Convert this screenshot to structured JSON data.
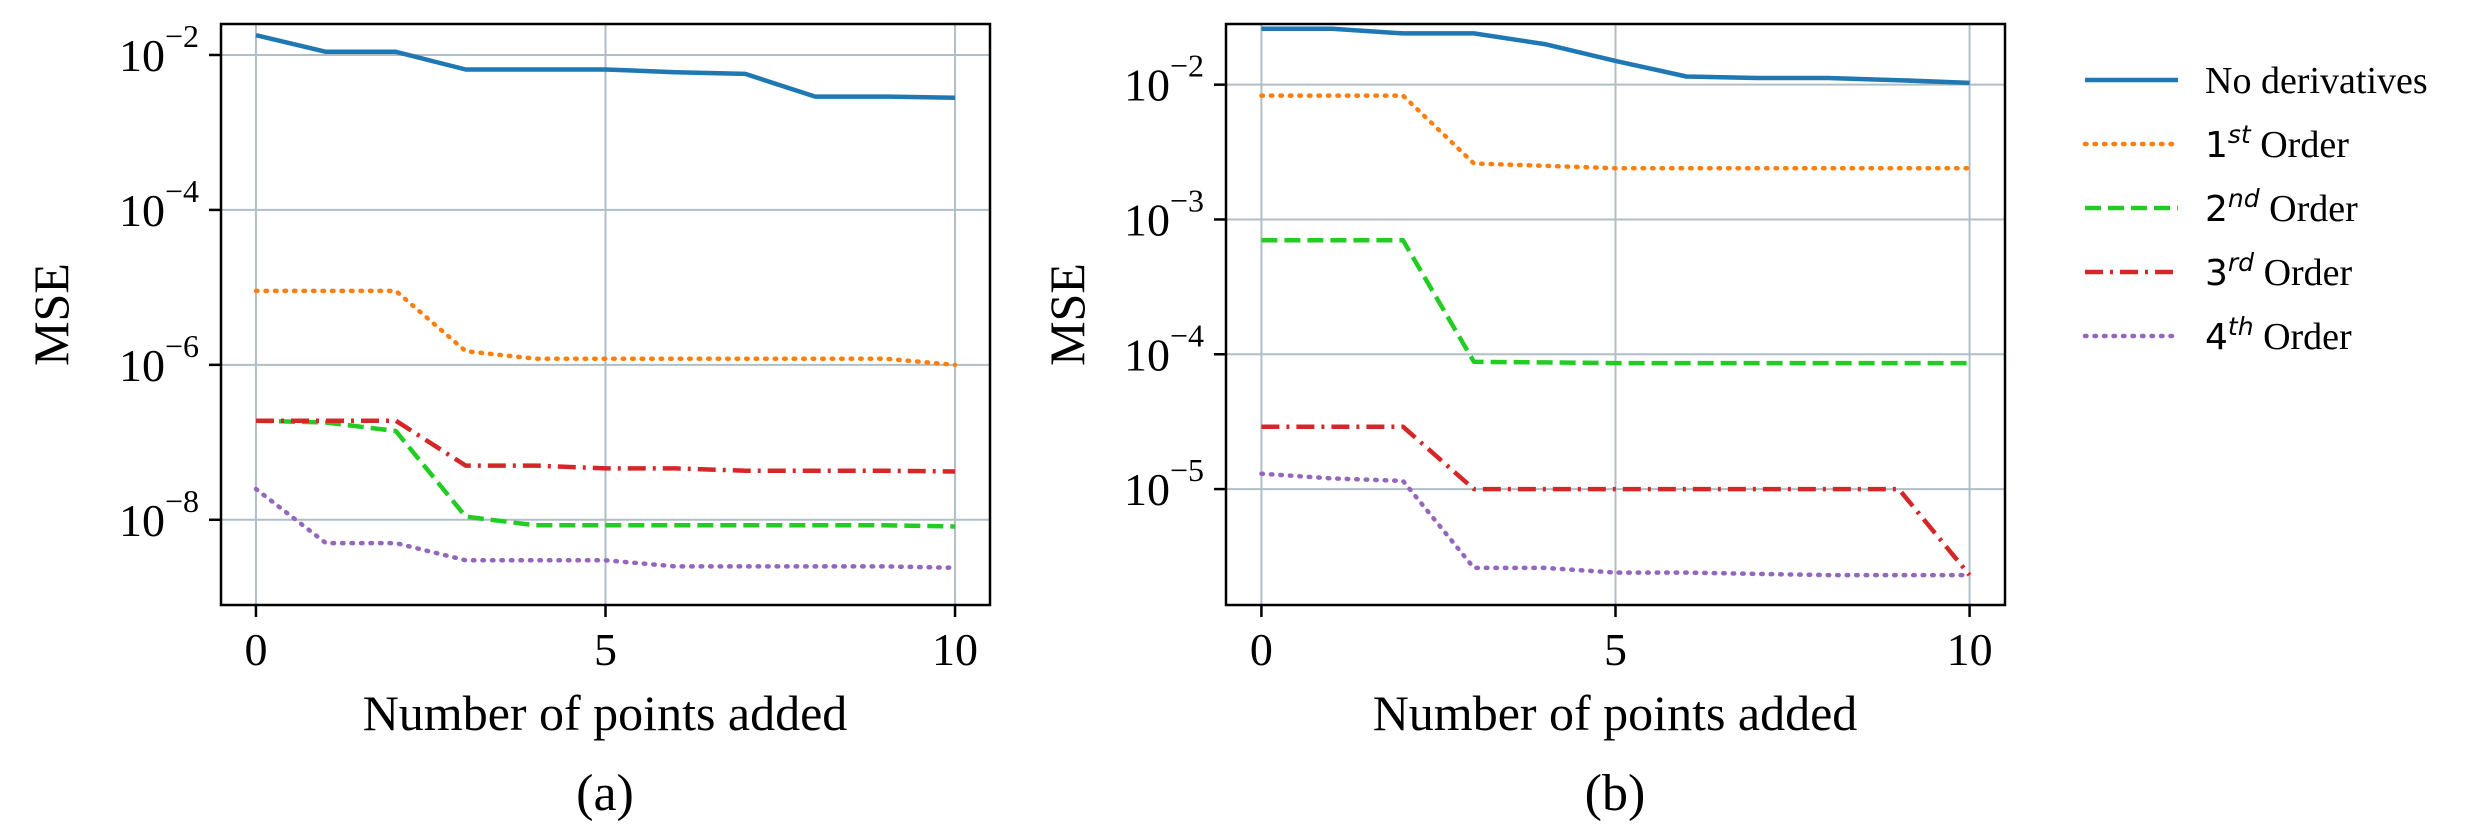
{
  "chart_data": [
    {
      "id": "a",
      "type": "line",
      "panel_label": "(a)",
      "xlabel": "Number of points added",
      "ylabel": "MSE",
      "yscale": "log",
      "xlim": [
        -0.5,
        10.5
      ],
      "ylim_log10": [
        -9.1,
        -1.6
      ],
      "xticks": [
        0,
        5,
        10
      ],
      "yticks": [
        {
          "base": "10",
          "exp": "−2",
          "log": -2
        },
        {
          "base": "10",
          "exp": "−4",
          "log": -4
        },
        {
          "base": "10",
          "exp": "−6",
          "log": -6
        },
        {
          "base": "10",
          "exp": "−8",
          "log": -8
        }
      ],
      "grid": true,
      "x": [
        0,
        1,
        2,
        3,
        4,
        5,
        6,
        7,
        8,
        9,
        10
      ],
      "series": [
        {
          "key": "no-derivatives",
          "values": [
            0.018,
            0.011,
            0.011,
            0.0065,
            0.0065,
            0.0065,
            0.006,
            0.0057,
            0.0029,
            0.0029,
            0.0028
          ]
        },
        {
          "key": "1st-order",
          "values": [
            9e-06,
            9e-06,
            9e-06,
            1.5e-06,
            1.2e-06,
            1.2e-06,
            1.2e-06,
            1.2e-06,
            1.2e-06,
            1.2e-06,
            1e-06
          ]
        },
        {
          "key": "2nd-order",
          "values": [
            1.9e-07,
            1.8e-07,
            1.4e-07,
            1.1e-08,
            8.5e-09,
            8.5e-09,
            8.5e-09,
            8.5e-09,
            8.5e-09,
            8.5e-09,
            8.2e-09
          ]
        },
        {
          "key": "3rd-order",
          "values": [
            1.9e-07,
            1.9e-07,
            1.9e-07,
            5e-08,
            5e-08,
            4.6e-08,
            4.6e-08,
            4.3e-08,
            4.3e-08,
            4.3e-08,
            4.2e-08
          ]
        },
        {
          "key": "4th-order",
          "values": [
            2.5e-08,
            5e-09,
            5e-09,
            3e-09,
            3e-09,
            3e-09,
            2.5e-09,
            2.5e-09,
            2.5e-09,
            2.5e-09,
            2.4e-09
          ]
        }
      ]
    },
    {
      "id": "b",
      "type": "line",
      "panel_label": "(b)",
      "xlabel": "Number of points added",
      "ylabel": "MSE",
      "yscale": "log",
      "xlim": [
        -0.5,
        10.5
      ],
      "ylim_log10": [
        -5.86,
        -1.55
      ],
      "xticks": [
        0,
        5,
        10
      ],
      "yticks": [
        {
          "base": "10",
          "exp": "−2",
          "log": -2
        },
        {
          "base": "10",
          "exp": "−3",
          "log": -3
        },
        {
          "base": "10",
          "exp": "−4",
          "log": -4
        },
        {
          "base": "10",
          "exp": "−5",
          "log": -5
        }
      ],
      "grid": true,
      "x": [
        0,
        1,
        2,
        3,
        4,
        5,
        6,
        7,
        8,
        9,
        10
      ],
      "series": [
        {
          "key": "no-derivatives",
          "values": [
            0.026,
            0.026,
            0.024,
            0.024,
            0.02,
            0.015,
            0.0115,
            0.0112,
            0.0112,
            0.0108,
            0.0103
          ]
        },
        {
          "key": "1st-order",
          "values": [
            0.0083,
            0.0083,
            0.0083,
            0.0026,
            0.0025,
            0.0024,
            0.0024,
            0.0024,
            0.0024,
            0.0024,
            0.0024
          ]
        },
        {
          "key": "2nd-order",
          "values": [
            0.0007,
            0.0007,
            0.0007,
            8.8e-05,
            8.7e-05,
            8.6e-05,
            8.6e-05,
            8.6e-05,
            8.6e-05,
            8.6e-05,
            8.6e-05
          ]
        },
        {
          "key": "3rd-order",
          "values": [
            2.9e-05,
            2.9e-05,
            2.9e-05,
            1e-05,
            1e-05,
            1e-05,
            1e-05,
            1e-05,
            1e-05,
            1e-05,
            2.3e-06
          ]
        },
        {
          "key": "4th-order",
          "values": [
            1.3e-05,
            1.2e-05,
            1.15e-05,
            2.6e-06,
            2.6e-06,
            2.4e-06,
            2.4e-06,
            2.35e-06,
            2.3e-06,
            2.3e-06,
            2.3e-06
          ]
        }
      ]
    }
  ],
  "legend": {
    "placement": "right",
    "entries": [
      {
        "key": "no-derivatives",
        "text": "No derivatives",
        "sup": "",
        "base": "",
        "color": "#1f77b4",
        "style": "solid"
      },
      {
        "key": "1st-order",
        "base": "1",
        "sup": "st",
        "text": " Order",
        "color": "#ff7f0e",
        "style": "dotted"
      },
      {
        "key": "2nd-order",
        "base": "2",
        "sup": "nd",
        "text": " Order",
        "color": "#22cc22",
        "style": "dashed"
      },
      {
        "key": "3rd-order",
        "base": "3",
        "sup": "rd",
        "text": " Order",
        "color": "#d62728",
        "style": "dashdot"
      },
      {
        "key": "4th-order",
        "base": "4",
        "sup": "th",
        "text": " Order",
        "color": "#9467bd",
        "style": "dotted"
      }
    ]
  }
}
